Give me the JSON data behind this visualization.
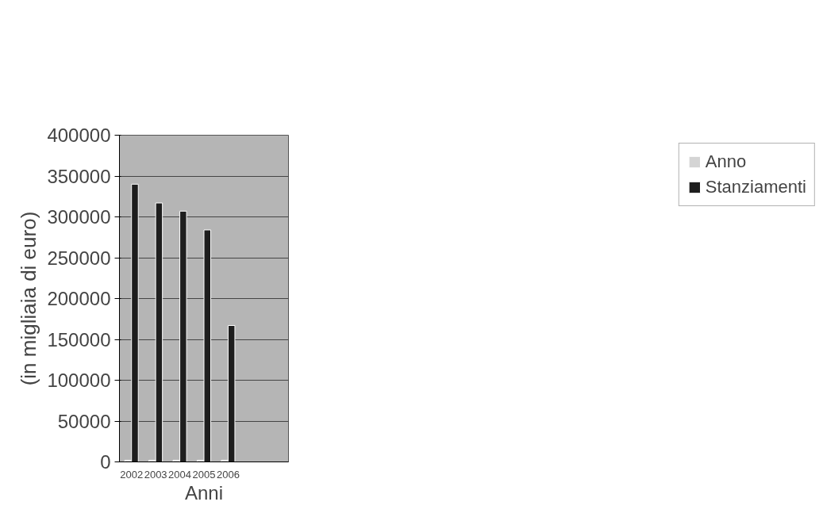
{
  "chart_data": {
    "type": "bar",
    "xlabel": "Anni",
    "ylabel": "(in migliaia di euro)",
    "categories": [
      "2002",
      "2003",
      "2004",
      "2005",
      "2006",
      null,
      null
    ],
    "series": [
      {
        "name": "Anno",
        "color": "#d4d4d4",
        "values": [
          2002,
          2003,
          2004,
          2005,
          2006,
          null,
          null
        ]
      },
      {
        "name": "Stanziamenti",
        "color": "#1e1e1e",
        "values": [
          340000,
          317000,
          307000,
          284000,
          167000,
          null,
          null
        ]
      }
    ],
    "ylim": [
      0,
      400000
    ],
    "yticks": [
      0,
      50000,
      100000,
      150000,
      200000,
      250000,
      300000,
      350000,
      400000
    ],
    "grid": "y",
    "legend": "right"
  }
}
